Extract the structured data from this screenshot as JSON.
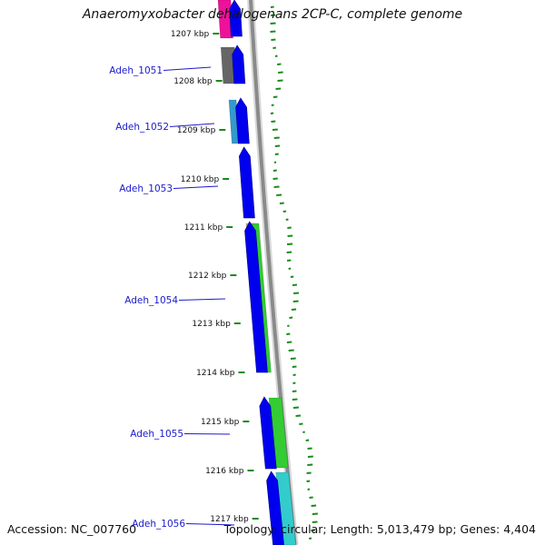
{
  "title": "Anaeromyxobacter dehalogenans 2CP-C, complete genome",
  "footer": {
    "accession": "Accession: NC_007760",
    "stats": "Topology: circular; Length: 5,013,479 bp; Genes: 4,404"
  },
  "kbp_ticks": [
    "1207 kbp",
    "1208 kbp",
    "1209 kbp",
    "1210 kbp",
    "1211 kbp",
    "1212 kbp",
    "1213 kbp",
    "1214 kbp",
    "1215 kbp",
    "1216 kbp",
    "1217 kbp"
  ],
  "genes": [
    {
      "label": "Adeh_1051"
    },
    {
      "label": "Adeh_1052"
    },
    {
      "label": "Adeh_1053"
    },
    {
      "label": "Adeh_1054"
    },
    {
      "label": "Adeh_1055"
    },
    {
      "label": "Adeh_1056"
    }
  ],
  "colors": {
    "gene_arrow": "#0000ee",
    "backbone": "#8a8a8a",
    "label_link": "#1a1acc",
    "gc_skew_dashes": "#1a8a1a",
    "cog_magenta": "#ee1199",
    "cog_grey": "#666666",
    "cog_steelblue": "#3399cc",
    "cog_khaki": "#c8b477",
    "cog_green": "#33cc33",
    "cog_cyan": "#33cccc"
  }
}
